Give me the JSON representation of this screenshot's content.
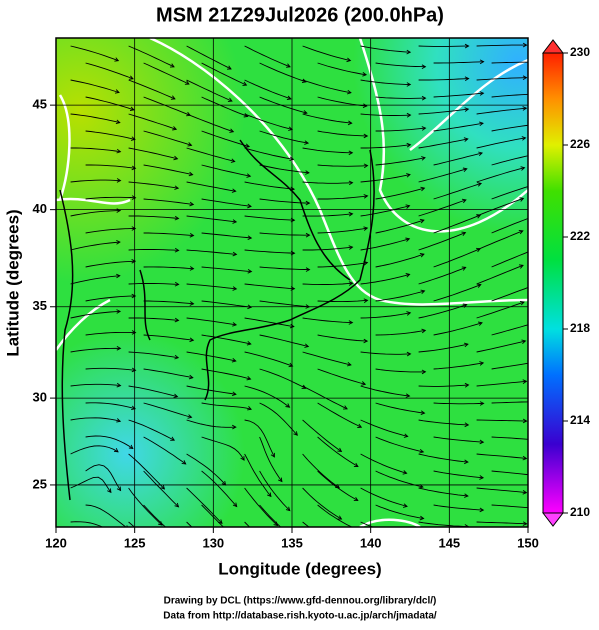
{
  "title": "MSM 21Z29Jul2026 (200.0hPa)",
  "x_axis": {
    "label": "Longitude (degrees)",
    "lim": [
      120,
      150
    ],
    "ticks": [
      120,
      125,
      130,
      135,
      140,
      145,
      150
    ]
  },
  "y_axis": {
    "label": "Latitude  (degrees)",
    "lim": [
      22.5,
      48
    ],
    "ticks": [
      25,
      30,
      35,
      40,
      45
    ]
  },
  "colorbar": {
    "lim": [
      210,
      230
    ],
    "ticks": [
      210,
      214,
      218,
      222,
      226,
      230
    ]
  },
  "credits": [
    "Drawing by DCL (https://www.gfd-dennou.org/library/dcl/)",
    "Data from http://database.rish.kyoto-u.ac.jp/arch/jmadata/"
  ]
}
